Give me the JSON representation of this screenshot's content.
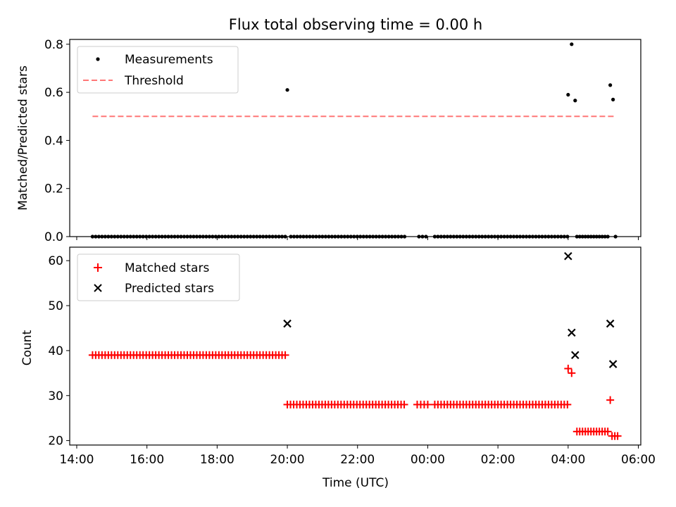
{
  "chart_data": {
    "type": "scatter",
    "title": "Flux total observing time = 0.00 h",
    "xlabel": "Time (UTC)",
    "x_unit": "hours (UTC), continuing past midnight",
    "xlim": [
      13.8,
      30.07
    ],
    "xticks": [
      14,
      16,
      18,
      20,
      22,
      24,
      26,
      28,
      30
    ],
    "xtick_labels": [
      "14:00",
      "16:00",
      "18:00",
      "20:00",
      "22:00",
      "00:00",
      "02:00",
      "04:00",
      "06:00"
    ],
    "panels": [
      {
        "ylabel": "Matched/Predicted stars",
        "ylim": [
          0,
          0.82
        ],
        "yticks": [
          0,
          0.2,
          0.4,
          0.6,
          0.8
        ],
        "ytick_labels": [
          "0.0",
          "0.2",
          "0.4",
          "0.6",
          "0.8"
        ],
        "legend": "upper-left",
        "series": [
          {
            "name": "Measurements",
            "marker": "dot",
            "color": "#000000",
            "nonzero_points": [
              [
                20.0,
                0.61
              ],
              [
                28.0,
                0.59
              ],
              [
                28.1,
                0.8
              ],
              [
                28.2,
                0.566
              ],
              [
                29.2,
                0.63
              ],
              [
                29.28,
                0.57
              ]
            ],
            "zero_runs": [
              [
                14.45,
                19.98,
                0.09
              ],
              [
                20.1,
                23.3,
                0.09
              ],
              [
                23.75,
                23.95,
                0.1
              ],
              [
                24.2,
                27.98,
                0.09
              ],
              [
                28.25,
                29.15,
                0.08
              ],
              [
                29.35,
                29.35,
                0.1
              ]
            ]
          },
          {
            "name": "Threshold",
            "style": "dashed",
            "color": "#ff7777",
            "x": [
              14.45,
              29.35
            ],
            "y": [
              0.5,
              0.5
            ]
          }
        ]
      },
      {
        "ylabel": "Count",
        "ylim": [
          19,
          63
        ],
        "yticks": [
          20,
          30,
          40,
          50,
          60
        ],
        "ytick_labels": [
          "20",
          "30",
          "40",
          "50",
          "60"
        ],
        "legend": "upper-left",
        "series": [
          {
            "name": "Matched stars",
            "marker": "plus",
            "color": "#ff0000",
            "points": [
              [
                28.0,
                36
              ],
              [
                28.1,
                35
              ],
              [
                29.2,
                29
              ]
            ],
            "runs": [
              [
                14.45,
                19.9,
                0.09,
                39
              ],
              [
                20.0,
                23.3,
                0.09,
                28
              ],
              [
                23.7,
                23.95,
                0.1,
                28
              ],
              [
                24.2,
                28.0,
                0.09,
                28
              ],
              [
                28.25,
                29.15,
                0.08,
                22
              ],
              [
                29.25,
                29.4,
                0.08,
                21
              ]
            ]
          },
          {
            "name": "Predicted stars",
            "marker": "x",
            "color": "#000000",
            "points": [
              [
                20.0,
                46
              ],
              [
                28.0,
                61
              ],
              [
                28.1,
                44
              ],
              [
                28.2,
                39
              ],
              [
                29.2,
                46
              ],
              [
                29.28,
                37
              ]
            ]
          }
        ]
      }
    ]
  }
}
